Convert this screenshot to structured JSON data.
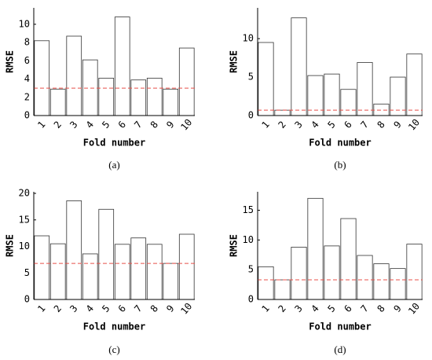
{
  "chart_data": [
    {
      "type": "bar",
      "caption": "(a)",
      "xlabel": "Fold number",
      "ylabel": "RMSE",
      "categories": [
        "1",
        "2",
        "3",
        "4",
        "5",
        "6",
        "7",
        "8",
        "9",
        "10"
      ],
      "values": [
        8.2,
        2.9,
        8.7,
        6.1,
        4.1,
        10.8,
        3.9,
        4.1,
        2.9,
        7.4
      ],
      "color": "#ffffff",
      "reference_line": {
        "value": 3.0,
        "color": "#e8504a"
      },
      "ylim": [
        0,
        11.8
      ],
      "yticks": [
        0,
        2,
        4,
        6,
        8,
        10
      ]
    },
    {
      "type": "bar",
      "caption": "(b)",
      "xlabel": "Fold number",
      "ylabel": "RMSE",
      "categories": [
        "1",
        "2",
        "3",
        "4",
        "5",
        "6",
        "7",
        "8",
        "9",
        "10"
      ],
      "values": [
        9.5,
        0.7,
        12.7,
        5.2,
        5.4,
        3.4,
        6.9,
        1.5,
        5.0,
        8.0
      ],
      "color": "#ffffff",
      "reference_line": {
        "value": 0.7,
        "color": "#e8504a"
      },
      "ylim": [
        0,
        14.0
      ],
      "yticks": [
        0,
        5,
        10
      ]
    },
    {
      "type": "bar",
      "caption": "(c)",
      "xlabel": "Fold number",
      "ylabel": "RMSE",
      "categories": [
        "1",
        "2",
        "3",
        "4",
        "5",
        "6",
        "7",
        "8",
        "9",
        "10"
      ],
      "values": [
        12.0,
        10.5,
        18.6,
        8.6,
        17.0,
        10.4,
        11.6,
        10.4,
        6.8,
        12.3
      ],
      "color": "#ffffff",
      "reference_line": {
        "value": 6.8,
        "color": "#e8504a"
      },
      "ylim": [
        0,
        20.3
      ],
      "yticks": [
        0,
        5,
        10,
        15,
        20
      ]
    },
    {
      "type": "bar",
      "caption": "(d)",
      "xlabel": "Fold number",
      "ylabel": "RMSE",
      "categories": [
        "1",
        "2",
        "3",
        "4",
        "5",
        "6",
        "7",
        "8",
        "9",
        "10"
      ],
      "values": [
        5.5,
        3.3,
        8.8,
        17.0,
        9.0,
        13.6,
        7.4,
        6.0,
        5.2,
        9.3
      ],
      "color": "#ffffff",
      "reference_line": {
        "value": 3.3,
        "color": "#e8504a"
      },
      "ylim": [
        0,
        18.1
      ],
      "yticks": [
        0,
        5,
        10,
        15
      ]
    }
  ]
}
